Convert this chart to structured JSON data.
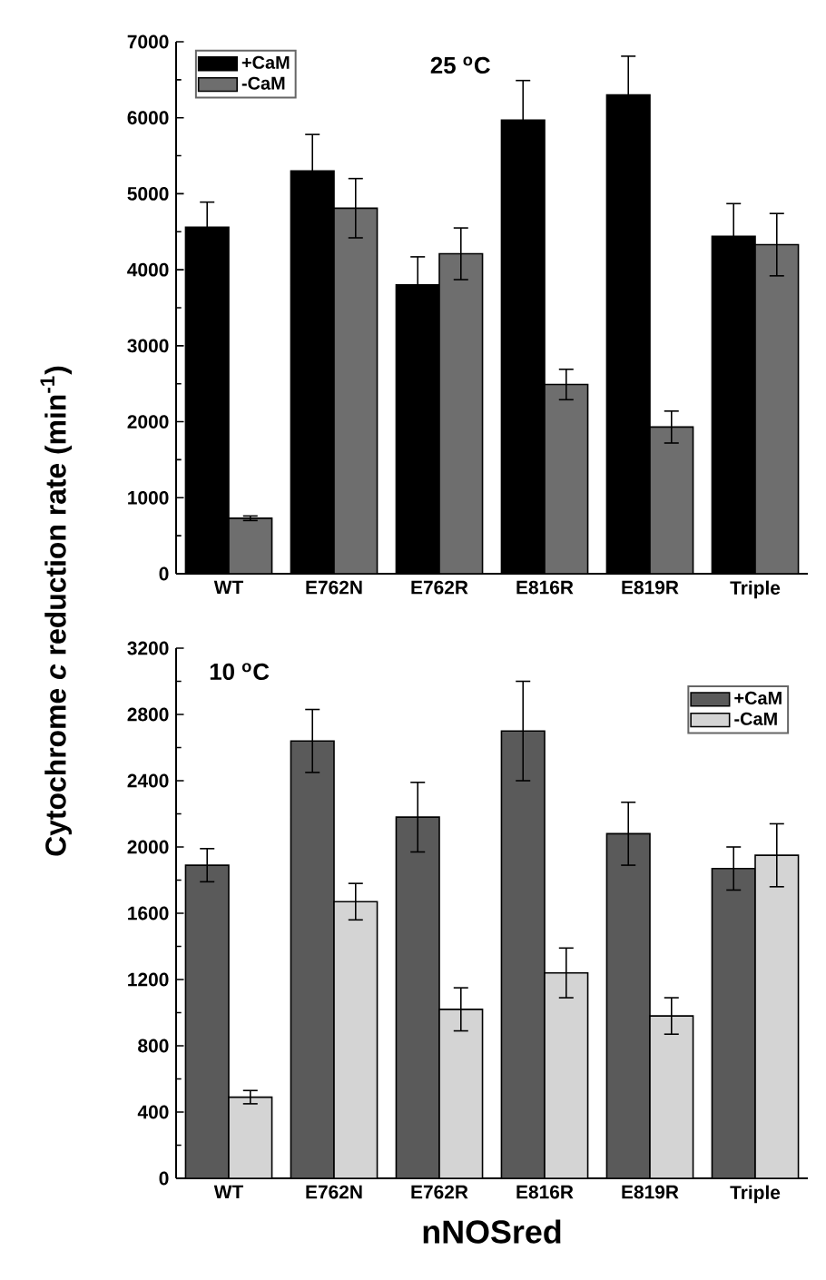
{
  "chart_data": [
    {
      "type": "bar",
      "title": "25 $^{o}$C",
      "ylabel": "Cytochrome *c* reduction rate (min$^{-1}$)",
      "categories": [
        "WT",
        "E762N",
        "E762R",
        "E816R",
        "E819R",
        "Triple"
      ],
      "ylim": [
        0,
        7000
      ],
      "yticks": [
        0,
        1000,
        2000,
        3000,
        4000,
        5000,
        6000,
        7000
      ],
      "legend": "top left",
      "series": [
        {
          "name": "+CaM",
          "color": "#000000",
          "values": [
            4560,
            5300,
            3800,
            5970,
            6300,
            4440
          ],
          "errors": [
            330,
            480,
            370,
            520,
            510,
            430
          ]
        },
        {
          "name": "-CaM",
          "color": "#6e6e6e",
          "values": [
            730,
            4810,
            4210,
            2490,
            1930,
            4330
          ],
          "errors": [
            30,
            390,
            340,
            200,
            210,
            410
          ]
        }
      ]
    },
    {
      "type": "bar",
      "title": "10 $^{o}$C",
      "xlabel": "nNOSred",
      "categories": [
        "WT",
        "E762N",
        "E762R",
        "E816R",
        "E819R",
        "Triple"
      ],
      "ylim": [
        0,
        3200
      ],
      "yticks": [
        0,
        400,
        800,
        1200,
        1600,
        2000,
        2400,
        2800,
        3200
      ],
      "legend": "top right",
      "series": [
        {
          "name": "+CaM",
          "color": "#5a5a5a",
          "values": [
            1890,
            2640,
            2180,
            2700,
            2080,
            1870
          ],
          "errors": [
            100,
            190,
            210,
            300,
            190,
            130
          ]
        },
        {
          "name": "-CaM",
          "color": "#d4d4d4",
          "values": [
            490,
            1670,
            1020,
            1240,
            980,
            1950
          ],
          "errors": [
            40,
            110,
            130,
            150,
            110,
            190
          ]
        }
      ]
    }
  ]
}
